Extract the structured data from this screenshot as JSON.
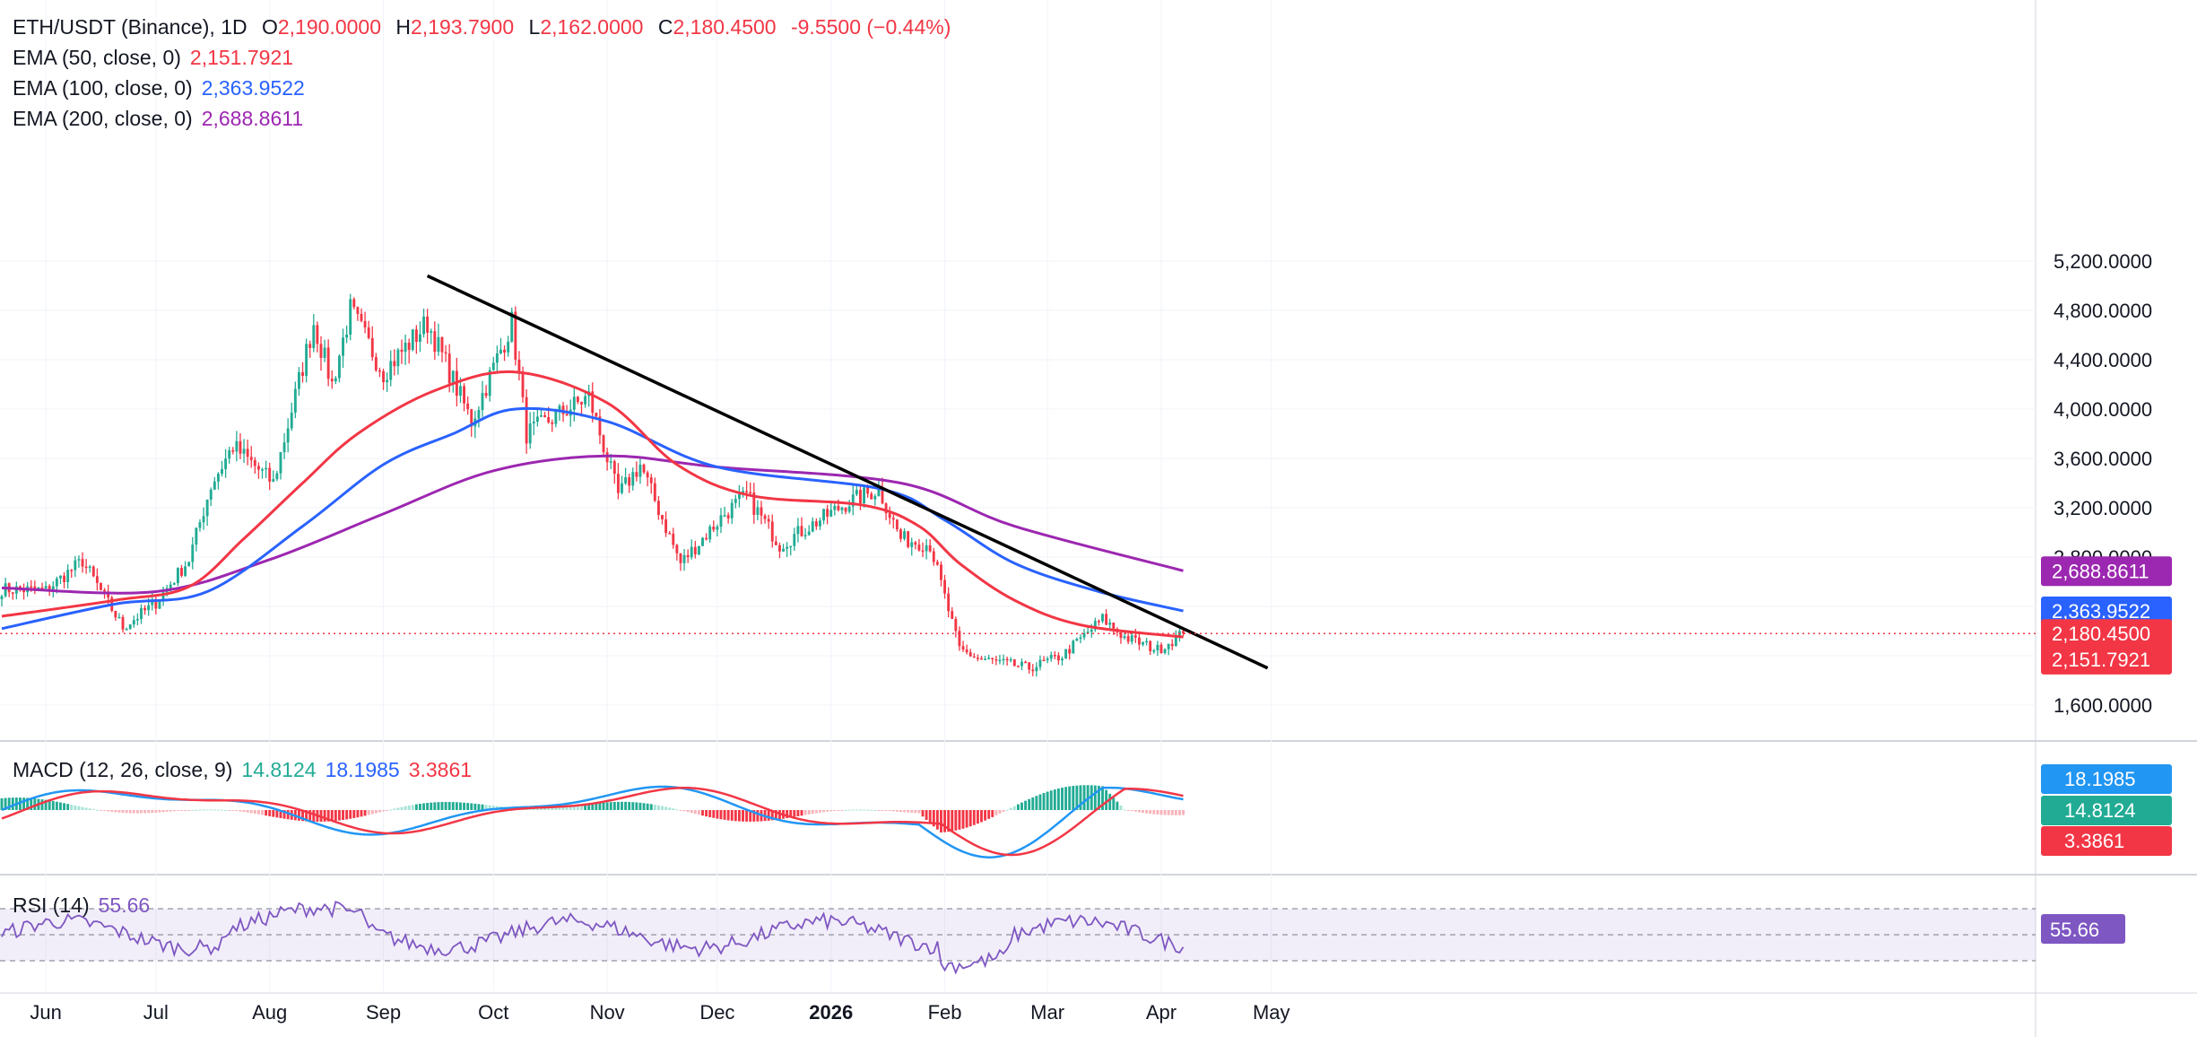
{
  "header": {
    "symbol": "ETH/USDT (Binance), 1D",
    "open_label": "O",
    "open": "2,190.0000",
    "high_label": "H",
    "high": "2,193.7900",
    "low_label": "L",
    "low": "2,162.0000",
    "close_label": "C",
    "close": "2,180.4500",
    "change": "-9.5500 (−0.44%)"
  },
  "ema": [
    {
      "label": "EMA (50, close, 0)",
      "value": "2,151.7921",
      "color": "#f23645"
    },
    {
      "label": "EMA (100, close, 0)",
      "value": "2,363.9522",
      "color": "#2962ff"
    },
    {
      "label": "EMA (200, close, 0)",
      "value": "2,688.8611",
      "color": "#9c27b0"
    }
  ],
  "macd": {
    "label": "MACD (12, 26, close, 9)",
    "hist": "14.8124",
    "macd": "18.1985",
    "signal": "3.3861"
  },
  "rsi": {
    "label": "RSI (14)",
    "value": "55.66"
  },
  "colors": {
    "up": "#22ab94",
    "down": "#f23645",
    "ema50": "#f23645",
    "ema100": "#2962ff",
    "ema200": "#9c27b0",
    "trendline": "#000000",
    "rsi": "#7e57c2"
  },
  "chart_data": {
    "type": "candlestick",
    "title": "ETH/USDT (Binance), 1D",
    "y_ticks": [
      "5,200.0000",
      "4,800.0000",
      "4,400.0000",
      "4,000.0000",
      "3,600.0000",
      "3,200.0000",
      "2,800.0000",
      "1,600.0000"
    ],
    "ylim": [
      1450,
      5300
    ],
    "x_ticks": [
      "Jun",
      "Jul",
      "Aug",
      "Sep",
      "Oct",
      "Nov",
      "Dec",
      "2026",
      "Feb",
      "Mar",
      "Apr",
      "May"
    ],
    "price_anchors": [
      {
        "date": "2025-05-20",
        "close": 2540
      },
      {
        "date": "2025-06-01",
        "close": 2530
      },
      {
        "date": "2025-06-11",
        "close": 2770
      },
      {
        "date": "2025-06-22",
        "close": 2230
      },
      {
        "date": "2025-07-01",
        "close": 2430
      },
      {
        "date": "2025-07-10",
        "close": 2780
      },
      {
        "date": "2025-07-16",
        "close": 3380
      },
      {
        "date": "2025-07-22",
        "close": 3700
      },
      {
        "date": "2025-08-02",
        "close": 3400
      },
      {
        "date": "2025-08-13",
        "close": 4700
      },
      {
        "date": "2025-08-18",
        "close": 4200
      },
      {
        "date": "2025-08-23",
        "close": 4800
      },
      {
        "date": "2025-09-01",
        "close": 4300
      },
      {
        "date": "2025-09-13",
        "close": 4700
      },
      {
        "date": "2025-09-25",
        "close": 3900
      },
      {
        "date": "2025-10-06",
        "close": 4700
      },
      {
        "date": "2025-10-10",
        "close": 3800
      },
      {
        "date": "2025-10-27",
        "close": 4100
      },
      {
        "date": "2025-11-04",
        "close": 3300
      },
      {
        "date": "2025-11-10",
        "close": 3550
      },
      {
        "date": "2025-11-21",
        "close": 2750
      },
      {
        "date": "2025-12-03",
        "close": 3150
      },
      {
        "date": "2025-12-09",
        "close": 3300
      },
      {
        "date": "2025-12-18",
        "close": 2900
      },
      {
        "date": "2026-01-06",
        "close": 3250
      },
      {
        "date": "2026-01-14",
        "close": 3350
      },
      {
        "date": "2026-01-20",
        "close": 2950
      },
      {
        "date": "2026-01-28",
        "close": 2900
      },
      {
        "date": "2026-02-05",
        "close": 2050
      },
      {
        "date": "2026-02-10",
        "close": 1980
      },
      {
        "date": "2026-02-24",
        "close": 1900
      },
      {
        "date": "2026-03-05",
        "close": 2000
      },
      {
        "date": "2026-03-16",
        "close": 2300
      },
      {
        "date": "2026-03-22",
        "close": 2150
      },
      {
        "date": "2026-03-31",
        "close": 2050
      },
      {
        "date": "2026-04-07",
        "close": 2180
      }
    ],
    "ema_anchors": {
      "ema50": [
        [
          "2025-05-20",
          2320
        ],
        [
          "2025-06-20",
          2450
        ],
        [
          "2025-07-10",
          2560
        ],
        [
          "2025-07-25",
          2950
        ],
        [
          "2025-08-10",
          3400
        ],
        [
          "2025-08-25",
          3800
        ],
        [
          "2025-09-15",
          4150
        ],
        [
          "2025-10-07",
          4300
        ],
        [
          "2025-11-01",
          4050
        ],
        [
          "2025-11-20",
          3550
        ],
        [
          "2025-12-10",
          3300
        ],
        [
          "2026-01-10",
          3220
        ],
        [
          "2026-01-25",
          3050
        ],
        [
          "2026-02-05",
          2750
        ],
        [
          "2026-02-20",
          2450
        ],
        [
          "2026-03-10",
          2250
        ],
        [
          "2026-04-07",
          2152
        ]
      ],
      "ema100": [
        [
          "2025-05-20",
          2220
        ],
        [
          "2025-06-20",
          2420
        ],
        [
          "2025-07-15",
          2520
        ],
        [
          "2025-08-10",
          3050
        ],
        [
          "2025-09-01",
          3550
        ],
        [
          "2025-09-20",
          3800
        ],
        [
          "2025-10-07",
          4000
        ],
        [
          "2025-11-01",
          3900
        ],
        [
          "2025-12-01",
          3530
        ],
        [
          "2026-01-15",
          3350
        ],
        [
          "2026-02-01",
          3100
        ],
        [
          "2026-02-20",
          2750
        ],
        [
          "2026-03-15",
          2520
        ],
        [
          "2026-04-07",
          2364
        ]
      ],
      "ema200": [
        [
          "2025-05-20",
          2550
        ],
        [
          "2025-07-01",
          2520
        ],
        [
          "2025-08-01",
          2780
        ],
        [
          "2025-09-01",
          3150
        ],
        [
          "2025-10-01",
          3500
        ],
        [
          "2025-11-01",
          3620
        ],
        [
          "2025-12-01",
          3530
        ],
        [
          "2026-01-20",
          3400
        ],
        [
          "2026-02-20",
          3050
        ],
        [
          "2026-04-07",
          2689
        ]
      ]
    },
    "trendline": [
      [
        "2025-09-13",
        5080
      ],
      [
        "2026-04-30",
        1900
      ]
    ],
    "last_close": 2180.45
  }
}
